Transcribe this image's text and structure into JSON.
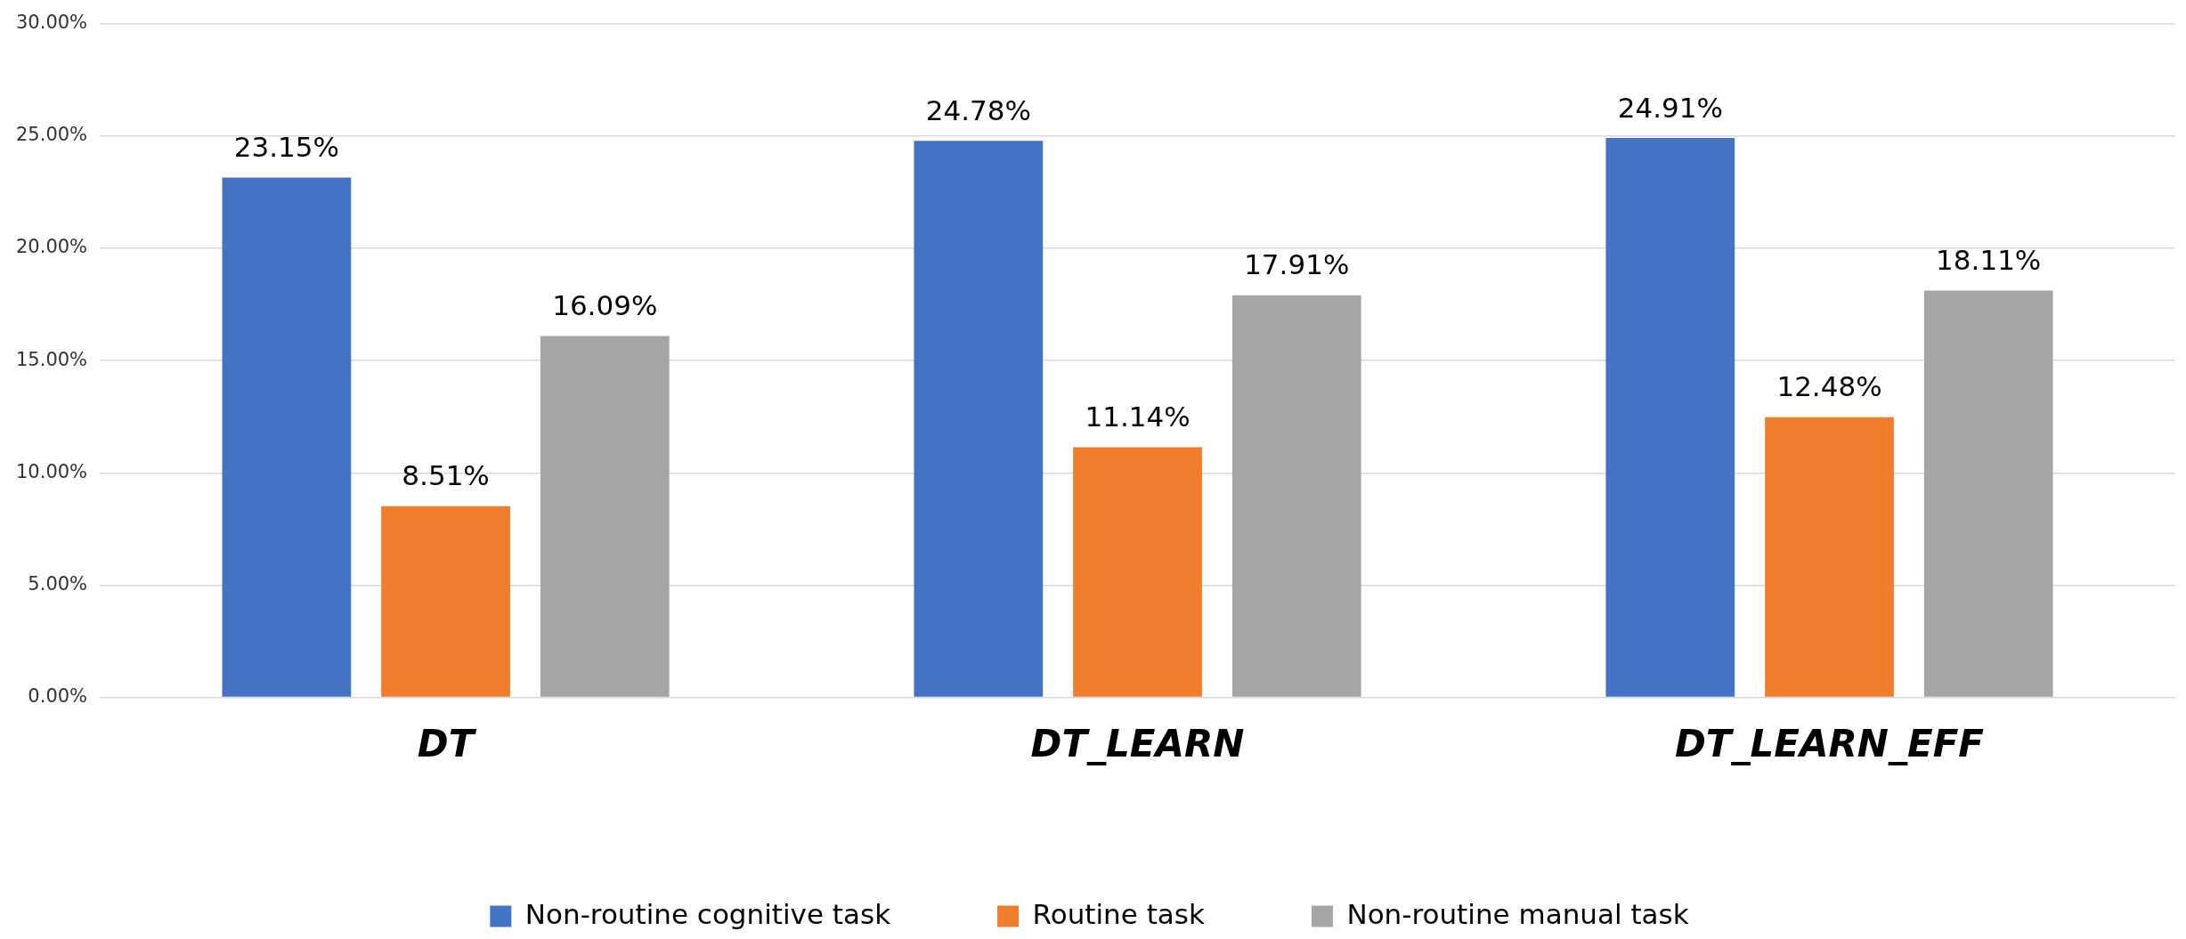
{
  "chart_data": {
    "type": "bar",
    "categories": [
      "DT",
      "DT_LEARN",
      "DT_LEARN_EFF"
    ],
    "series": [
      {
        "name": "Non-routine cognitive task",
        "color": "#4472c4",
        "values": [
          23.15,
          24.78,
          24.91
        ],
        "value_labels": [
          "23.15%",
          "24.78%",
          "24.91%"
        ]
      },
      {
        "name": "Routine task",
        "color": "#f07d2e",
        "values": [
          8.51,
          11.14,
          12.48
        ],
        "value_labels": [
          "8.51%",
          "11.14%",
          "12.48%"
        ]
      },
      {
        "name": "Non-routine manual task",
        "color": "#a5a5a5",
        "values": [
          16.09,
          17.91,
          18.11
        ],
        "value_labels": [
          "16.09%",
          "17.91%",
          "18.11%"
        ]
      }
    ],
    "ylim": [
      0,
      30
    ],
    "yticks": [
      {
        "value": 0,
        "label": "0.00%"
      },
      {
        "value": 5,
        "label": "5.00%"
      },
      {
        "value": 10,
        "label": "10.00%"
      },
      {
        "value": 15,
        "label": "15.00%"
      },
      {
        "value": 20,
        "label": "20.00%"
      },
      {
        "value": 25,
        "label": "25.00%"
      },
      {
        "value": 30,
        "label": "30.00%"
      }
    ],
    "grid": "y",
    "legend": "bottom"
  }
}
